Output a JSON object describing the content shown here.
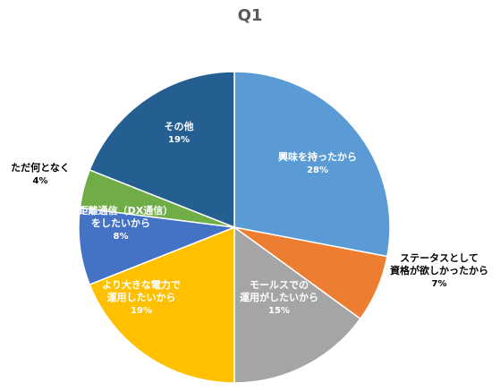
{
  "chart_data": {
    "type": "pie",
    "title": "Q1",
    "slices": [
      {
        "label": [
          "興味を持ったから"
        ],
        "pct": "28%",
        "value": 28,
        "color": "#5B9BD5"
      },
      {
        "label": [
          "ステータスとして",
          "資格が欲しかったから"
        ],
        "pct": "7%",
        "value": 7,
        "color": "#ED7D31"
      },
      {
        "label": [
          "モールスでの",
          "運用がしたいから"
        ],
        "pct": "15%",
        "value": 15,
        "color": "#A5A5A5"
      },
      {
        "label": [
          "より大きな電力で",
          "運用したいから"
        ],
        "pct": "19%",
        "value": 19,
        "color": "#FFC000"
      },
      {
        "label": [
          "遠距離通信（DX通信）",
          "をしたいから"
        ],
        "pct": "8%",
        "value": 8,
        "color": "#4472C4"
      },
      {
        "label": [
          "ただ何となく"
        ],
        "pct": "4%",
        "value": 4,
        "color": "#70AD47"
      },
      {
        "label": [
          "その他"
        ],
        "pct": "19%",
        "value": 19,
        "color": "#255E91"
      }
    ],
    "legend": "none"
  }
}
